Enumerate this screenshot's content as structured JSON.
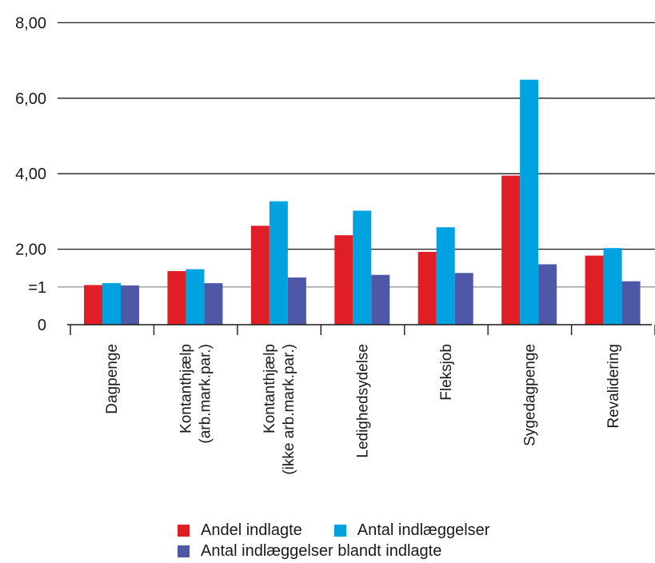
{
  "chart_data": {
    "type": "bar",
    "categories": [
      [
        "Dagpenge"
      ],
      [
        "Kontanthjælp",
        "(arb.mark.par.)"
      ],
      [
        "Kontanthjælp",
        "(ikke arb.mark.par.)"
      ],
      [
        "Ledighedsydelse"
      ],
      [
        "Fleksjob"
      ],
      [
        "Sygedagpenge"
      ],
      [
        "Revalidering"
      ]
    ],
    "series": [
      {
        "name": "Andel indlagte",
        "color": "#e01e25",
        "values": [
          1.05,
          1.42,
          2.62,
          2.37,
          1.93,
          3.95,
          1.83
        ]
      },
      {
        "name": "Antal indlæggelser",
        "color": "#00a3e0",
        "values": [
          1.1,
          1.47,
          3.27,
          3.02,
          2.58,
          6.49,
          2.03
        ]
      },
      {
        "name": "Antal indlæggelser blandt indlagte",
        "color": "#4e58a6",
        "values": [
          1.04,
          1.1,
          1.25,
          1.32,
          1.37,
          1.6,
          1.15
        ]
      }
    ],
    "y_ticks": [
      {
        "value": 0,
        "label": "0"
      },
      {
        "value": 1,
        "label": "=1"
      },
      {
        "value": 2,
        "label": "2,00"
      },
      {
        "value": 4,
        "label": "4,00"
      },
      {
        "value": 6,
        "label": "6,00"
      },
      {
        "value": 8,
        "label": "8,00"
      }
    ],
    "ylim": [
      0,
      8
    ],
    "grid": true,
    "legend_position": "bottom",
    "title": "",
    "xlabel": "",
    "ylabel": ""
  }
}
